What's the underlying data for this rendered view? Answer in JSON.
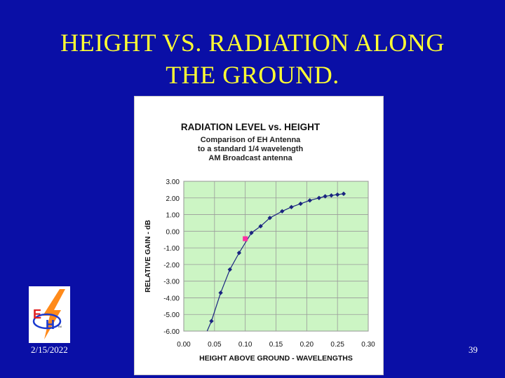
{
  "slide": {
    "title_line1": "HEIGHT VS. RADIATION ALONG",
    "title_line2": "THE GROUND.",
    "date": "2/15/2022",
    "page_number": "39"
  },
  "logo": {
    "letter_e": "E",
    "letter_h": "H",
    "mark": "TM"
  },
  "colors": {
    "background": "#0a0fa6",
    "title": "#ffff33",
    "plot_area": "#ccf5c4",
    "series": "#1a2580",
    "highlight": "#ff2fa0"
  },
  "chart_data": {
    "type": "line",
    "title": "RADIATION LEVEL vs. HEIGHT",
    "subtitle": [
      "Comparison of EH Antenna",
      "to a standard 1/4 wavelength",
      "AM Broadcast antenna"
    ],
    "xlabel": "HEIGHT ABOVE GROUND - WAVELENGTHS",
    "ylabel": "RELATIVE GAIN - dB",
    "xlim": [
      0,
      0.3
    ],
    "ylim": [
      -6,
      3
    ],
    "x_ticks": [
      "0.00",
      "0.05",
      "0.10",
      "0.15",
      "0.20",
      "0.25",
      "0.30"
    ],
    "y_ticks": [
      "3.00",
      "2.00",
      "1.00",
      "0.00",
      "-1.00",
      "-2.00",
      "-3.00",
      "-4.00",
      "-5.00",
      "-6.00"
    ],
    "grid": true,
    "series": [
      {
        "x": [
          0.045,
          0.06,
          0.075,
          0.09,
          0.11,
          0.125,
          0.14,
          0.16,
          0.175,
          0.19,
          0.205,
          0.22,
          0.23,
          0.24,
          0.25,
          0.26
        ],
        "y": [
          -5.4,
          -3.7,
          -2.3,
          -1.3,
          -0.1,
          0.3,
          0.8,
          1.2,
          1.45,
          1.65,
          1.85,
          2.0,
          2.1,
          2.15,
          2.2,
          2.25
        ]
      }
    ],
    "highlight_point": {
      "x": 0.1,
      "y": -0.45
    }
  }
}
